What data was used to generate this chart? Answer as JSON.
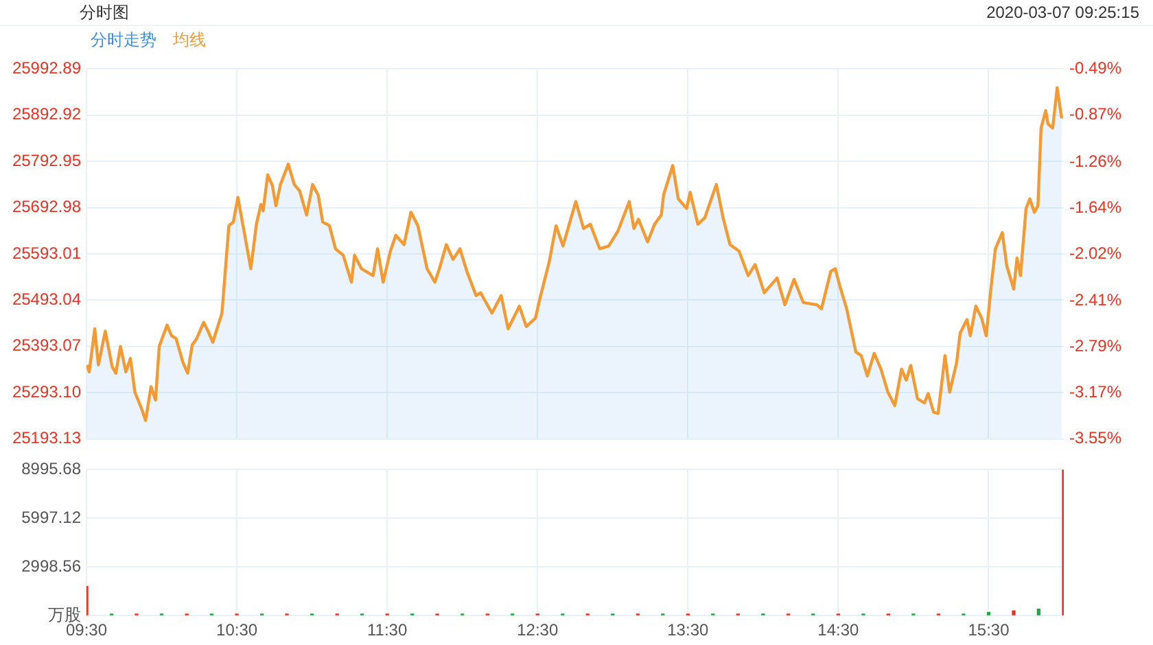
{
  "chart_data": [
    {
      "type": "line",
      "title": "分时图",
      "annotations": [
        "2020-03-07 09:25:15"
      ],
      "legend": "top left",
      "grid": true,
      "tick_labels": "y",
      "x": [
        9.503,
        9.518,
        9.555,
        9.579,
        9.625,
        9.671,
        9.695,
        9.726,
        9.762,
        9.792,
        9.822,
        9.868,
        9.893,
        9.929,
        9.959,
        9.984,
        10.036,
        10.066,
        10.096,
        10.142,
        10.173,
        10.203,
        10.233,
        10.279,
        10.31,
        10.34,
        10.401,
        10.447,
        10.477,
        10.507,
        10.553,
        10.593,
        10.63,
        10.66,
        10.675,
        10.705,
        10.736,
        10.76,
        10.79,
        10.842,
        10.882,
        10.918,
        10.964,
        11.004,
        11.041,
        11.071,
        11.116,
        11.156,
        11.208,
        11.262,
        11.283,
        11.329,
        11.406,
        11.436,
        11.473,
        11.521,
        11.557,
        11.612,
        11.658,
        11.704,
        11.765,
        11.817,
        11.847,
        11.893,
        11.938,
        11.984,
        12.03,
        12.091,
        12.121,
        12.197,
        12.258,
        12.304,
        12.379,
        12.425,
        12.486,
        12.516,
        12.577,
        12.623,
        12.669,
        12.754,
        12.806,
        12.851,
        12.913,
        12.973,
        13.034,
        13.11,
        13.141,
        13.171,
        13.232,
        13.278,
        13.323,
        13.338,
        13.399,
        13.436,
        13.491,
        13.515,
        13.566,
        13.612,
        13.689,
        13.734,
        13.78,
        13.84,
        13.901,
        13.947,
        14.008,
        14.093,
        14.145,
        14.206,
        14.267,
        14.358,
        14.388,
        14.45,
        14.48,
        14.511,
        14.556,
        14.617,
        14.653,
        14.693,
        14.739,
        14.784,
        14.83,
        14.876,
        14.921,
        14.952,
        14.982,
        15.027,
        15.073,
        15.098,
        15.134,
        15.164,
        15.21,
        15.241,
        15.287,
        15.311,
        15.356,
        15.378,
        15.415,
        15.454,
        15.484,
        15.515,
        15.545,
        15.591,
        15.621,
        15.667,
        15.689,
        15.712,
        15.749,
        15.774,
        15.804,
        15.828,
        15.849,
        15.88,
        15.895,
        15.926,
        15.956,
        15.986
      ],
      "series": [
        {
          "name": "分时走势",
          "type": "area",
          "color": "#3d8fe0",
          "values": [
            25353,
            25338,
            25431,
            25353,
            25426,
            25349,
            25335,
            25393,
            25338,
            25367,
            25294,
            25257,
            25233,
            25306,
            25277,
            25393,
            25439,
            25416,
            25410,
            25358,
            25335,
            25396,
            25410,
            25445,
            25425,
            25402,
            25465,
            25654,
            25662,
            25715,
            25633,
            25561,
            25657,
            25700,
            25686,
            25764,
            25741,
            25697,
            25743,
            25787,
            25743,
            25729,
            25677,
            25743,
            25720,
            25662,
            25654,
            25604,
            25590,
            25532,
            25590,
            25561,
            25546,
            25604,
            25532,
            25599,
            25633,
            25613,
            25683,
            25654,
            25561,
            25532,
            25561,
            25613,
            25581,
            25604,
            25555,
            25503,
            25509,
            25465,
            25503,
            25431,
            25480,
            25436,
            25454,
            25497,
            25575,
            25654,
            25610,
            25706,
            25648,
            25657,
            25604,
            25610,
            25642,
            25706,
            25648,
            25668,
            25619,
            25657,
            25677,
            25720,
            25784,
            25712,
            25691,
            25726,
            25657,
            25671,
            25743,
            25671,
            25613,
            25599,
            25546,
            25570,
            25509,
            25541,
            25483,
            25538,
            25488,
            25483,
            25474,
            25555,
            25561,
            25523,
            25474,
            25381,
            25373,
            25329,
            25378,
            25344,
            25294,
            25265,
            25344,
            25320,
            25352,
            25280,
            25271,
            25291,
            25251,
            25248,
            25373,
            25294,
            25358,
            25422,
            25451,
            25416,
            25480,
            25454,
            25416,
            25517,
            25604,
            25639,
            25567,
            25517,
            25584,
            25546,
            25691,
            25712,
            25683,
            25697,
            25865,
            25903,
            25874,
            25865,
            25952,
            25886
          ]
        },
        {
          "name": "均线",
          "type": "line",
          "color": "#f39a32",
          "values": [
            25353,
            25338,
            25431,
            25353,
            25426,
            25349,
            25335,
            25393,
            25338,
            25367,
            25294,
            25257,
            25233,
            25306,
            25277,
            25393,
            25439,
            25416,
            25410,
            25358,
            25335,
            25396,
            25410,
            25445,
            25425,
            25402,
            25465,
            25654,
            25662,
            25715,
            25633,
            25561,
            25657,
            25700,
            25686,
            25764,
            25741,
            25697,
            25743,
            25787,
            25743,
            25729,
            25677,
            25743,
            25720,
            25662,
            25654,
            25604,
            25590,
            25532,
            25590,
            25561,
            25546,
            25604,
            25532,
            25599,
            25633,
            25613,
            25683,
            25654,
            25561,
            25532,
            25561,
            25613,
            25581,
            25604,
            25555,
            25503,
            25509,
            25465,
            25503,
            25431,
            25480,
            25436,
            25454,
            25497,
            25575,
            25654,
            25610,
            25706,
            25648,
            25657,
            25604,
            25610,
            25642,
            25706,
            25648,
            25668,
            25619,
            25657,
            25677,
            25720,
            25784,
            25712,
            25691,
            25726,
            25657,
            25671,
            25743,
            25671,
            25613,
            25599,
            25546,
            25570,
            25509,
            25541,
            25483,
            25538,
            25488,
            25483,
            25474,
            25555,
            25561,
            25523,
            25474,
            25381,
            25373,
            25329,
            25378,
            25344,
            25294,
            25265,
            25344,
            25320,
            25352,
            25280,
            25271,
            25291,
            25251,
            25248,
            25373,
            25294,
            25358,
            25422,
            25451,
            25416,
            25480,
            25454,
            25416,
            25517,
            25604,
            25639,
            25567,
            25517,
            25584,
            25546,
            25691,
            25712,
            25683,
            25697,
            25865,
            25903,
            25874,
            25865,
            25952,
            25886
          ]
        }
      ],
      "xlim": [
        9.5,
        16
      ],
      "xticks": [
        9.5,
        10.5,
        11.5,
        12.5,
        13.5,
        14.5,
        15.5
      ],
      "ylim": [
        25193.13,
        25992.89
      ],
      "yticks": [
        25193.13,
        {
          "value": 25293.1,
          "label": "25293.10"
        },
        25393.07,
        25493.04,
        25593.01,
        25692.98,
        25792.95,
        25892.92,
        25992.89
      ],
      "y2lim": [
        -3.55,
        -0.49
      ],
      "y2ticks": [
        {
          "value": -3.55,
          "label": "-3.55%"
        },
        {
          "value": -3.17,
          "label": "-3.17%"
        },
        {
          "value": -2.79,
          "label": "-2.79%"
        },
        {
          "value": -2.41,
          "label": "-2.41%"
        },
        {
          "value": -2.02,
          "label": "-2.02%"
        },
        {
          "value": -1.64,
          "label": "-1.64%"
        },
        {
          "value": -1.26,
          "label": "-1.26%"
        },
        {
          "value": -0.87,
          "label": "-0.87%"
        },
        {
          "value": -0.49,
          "label": "-0.49%"
        }
      ]
    },
    {
      "type": "bar",
      "grid": true,
      "x": [
        9.5,
        9.667,
        9.833,
        10,
        10.167,
        10.333,
        10.5,
        10.667,
        10.833,
        11,
        11.167,
        11.333,
        11.5,
        11.667,
        11.833,
        12,
        12.167,
        12.333,
        12.5,
        12.667,
        12.833,
        13,
        13.167,
        13.333,
        13.5,
        13.667,
        13.833,
        14,
        14.167,
        14.333,
        14.5,
        14.667,
        14.833,
        15,
        15.167,
        15.333,
        15.5,
        15.667,
        15.833,
        16
      ],
      "values": [
        1800,
        100,
        100,
        100,
        100,
        100,
        100,
        100,
        100,
        100,
        100,
        100,
        100,
        100,
        100,
        100,
        100,
        100,
        100,
        100,
        100,
        100,
        100,
        100,
        100,
        100,
        100,
        100,
        100,
        100,
        100,
        100,
        100,
        100,
        100,
        100,
        200,
        300,
        400,
        8995.68
      ],
      "colors": [
        "#f0311f",
        "#22a745",
        "#f0311f",
        "#22a745",
        "#f0311f",
        "#22a745",
        "#f0311f",
        "#22a745",
        "#f0311f",
        "#22a745",
        "#f0311f",
        "#22a745",
        "#f0311f",
        "#22a745",
        "#f0311f",
        "#22a745",
        "#f0311f",
        "#22a745",
        "#f0311f",
        "#22a745",
        "#f0311f",
        "#22a745",
        "#f0311f",
        "#22a745",
        "#f0311f",
        "#22a745",
        "#f0311f",
        "#22a745",
        "#f0311f",
        "#22a745",
        "#f0311f",
        "#22a745",
        "#f0311f",
        "#22a745",
        "#f0311f",
        "#22a745",
        "#22a745",
        "#f0311f",
        "#22a745",
        "#f0311f"
      ],
      "xlim": [
        9.5,
        16
      ],
      "xticks": [
        {
          "value": 9.5,
          "label": "09:30"
        },
        {
          "value": 10.5,
          "label": "10:30"
        },
        {
          "value": 11.5,
          "label": "11:30"
        },
        {
          "value": 12.5,
          "label": "12:30"
        },
        {
          "value": 13.5,
          "label": "13:30"
        },
        {
          "value": 14.5,
          "label": "14:30"
        },
        {
          "value": 15.5,
          "label": "15:30"
        }
      ],
      "ylim": [
        0,
        8995.68
      ],
      "yticks": [
        {
          "value": 0,
          "label": "万股"
        },
        2998.56,
        5997.12,
        8995.68
      ]
    }
  ]
}
